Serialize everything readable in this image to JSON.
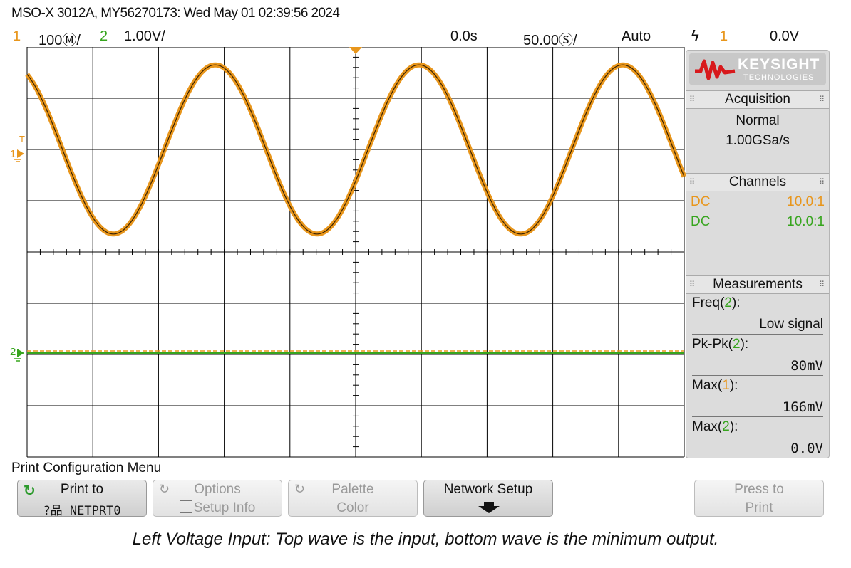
{
  "title": "MSO-X 3012A, MY56270173: Wed May 01 02:39:56 2024",
  "status": {
    "ch1_num": "1",
    "ch1_scale": "100Ⓜ/",
    "ch2_num": "2",
    "ch2_scale": "1.00V/",
    "time_offset": "0.0s",
    "time_scale": "50.00Ⓢ/",
    "trigger_mode": "Auto",
    "trigger_icon": "rising-edge-icon",
    "trigger_source": "1",
    "trigger_level": "0.0V"
  },
  "markers": {
    "ch1": "1",
    "ch2": "2",
    "trigger_t": "T"
  },
  "colors": {
    "ch1": "#e8961c",
    "ch2": "#37a51e",
    "grid": "#000000"
  },
  "panel": {
    "logo_text": "KEYSIGHT",
    "logo_sub": "TECHNOLOGIES",
    "acquisition_title": "Acquisition",
    "acq_mode": "Normal",
    "acq_rate": "1.00GSa/s",
    "channels_title": "Channels",
    "channels": [
      {
        "coupling": "DC",
        "probe": "10.0:1"
      },
      {
        "coupling": "DC",
        "probe": "10.0:1"
      }
    ],
    "measurements_title": "Measurements",
    "measurements": [
      {
        "pre": "Freq(",
        "ch": "2",
        "post": "):",
        "value": "Low signal"
      },
      {
        "pre": "Pk-Pk(",
        "ch": "2",
        "post": "):",
        "value": "80mV"
      },
      {
        "pre": "Max(",
        "ch": "1",
        "post": "):",
        "value": "166mV"
      },
      {
        "pre": "Max(",
        "ch": "2",
        "post": "):",
        "value": "0.0V"
      }
    ]
  },
  "menu_title": "Print Configuration Menu",
  "softkeys": [
    {
      "line1": "Print to",
      "line2": "?品 NETPRT0"
    },
    {
      "line1": "Options",
      "line2": "Setup Info"
    },
    {
      "line1": "Palette",
      "line2": "Color"
    },
    {
      "line1": "Network Setup",
      "line2": ""
    },
    {
      "line1": "Press to",
      "line2": "Print"
    }
  ],
  "caption": "Left Voltage Input: Top wave is the input, bottom wave is the minimum output.",
  "waveforms": {
    "ch1_period_divs": 3.1,
    "ch1_amplitude_divs": 1.65,
    "ch2_level": "flat"
  }
}
